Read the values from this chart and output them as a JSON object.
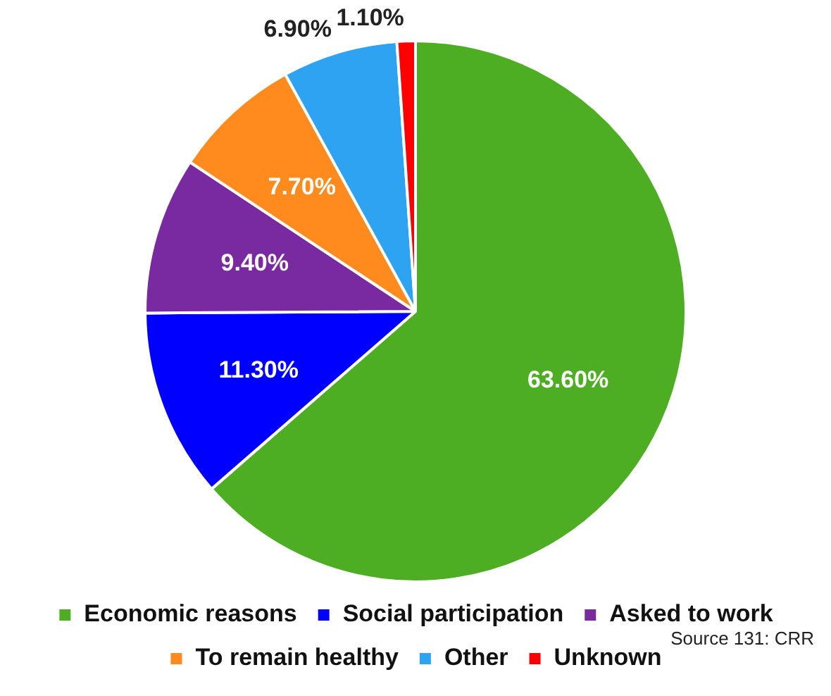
{
  "chart_data": {
    "type": "pie",
    "categories": [
      "Economic reasons",
      "Social participation",
      "Asked to work",
      "To remain healthy",
      "Other",
      "Unknown"
    ],
    "values": [
      63.6,
      11.3,
      9.4,
      7.7,
      6.9,
      1.1
    ],
    "value_labels": [
      "63.60%",
      "11.30%",
      "9.40%",
      "7.70%",
      "6.90%",
      "1.10%"
    ],
    "colors": [
      "#4eae23",
      "#0000ff",
      "#7a2aa0",
      "#ff8a1e",
      "#2ea3f2",
      "#ff0000"
    ],
    "legend": "bottom",
    "annotations": [
      "Source 131: CRR"
    ]
  }
}
